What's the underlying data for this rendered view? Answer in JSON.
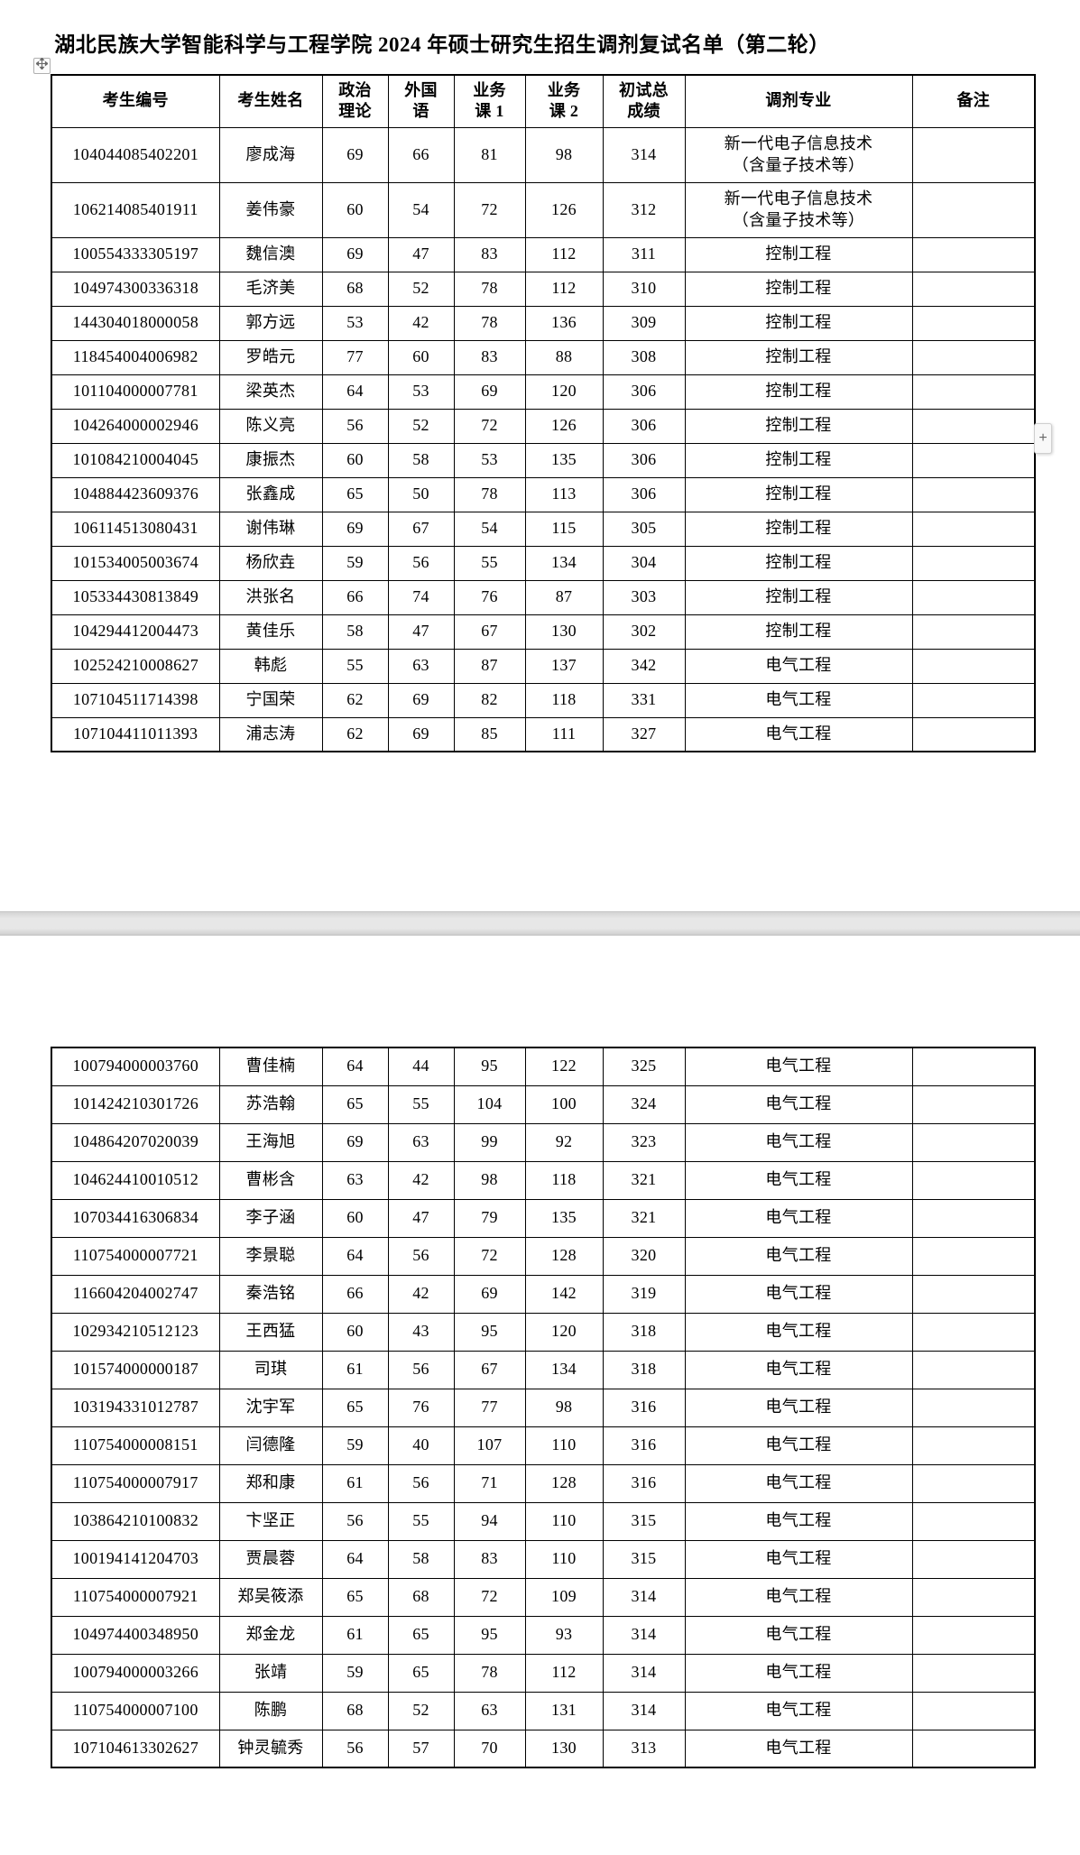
{
  "title": "湖北民族大学智能科学与工程学院 2024 年硕士研究生招生调剂复试名单（第二轮）",
  "controls": {
    "move_handle_icon": "table-move-icon",
    "plus_icon": "plus-icon",
    "plus_label": "+"
  },
  "table": {
    "headers": [
      "考生编号",
      "考生姓名",
      "政治\n理论",
      "外国\n语",
      "业务\n课 1",
      "业务\n课 2",
      "初试总\n成绩",
      "调剂专业",
      "备注"
    ],
    "rows_page1": [
      [
        "104044085402201",
        "廖成海",
        "69",
        "66",
        "81",
        "98",
        "314",
        "新一代电子信息技术\n（含量子技术等）",
        ""
      ],
      [
        "106214085401911",
        "姜伟豪",
        "60",
        "54",
        "72",
        "126",
        "312",
        "新一代电子信息技术\n（含量子技术等）",
        ""
      ],
      [
        "100554333305197",
        "魏信澳",
        "69",
        "47",
        "83",
        "112",
        "311",
        "控制工程",
        ""
      ],
      [
        "104974300336318",
        "毛济美",
        "68",
        "52",
        "78",
        "112",
        "310",
        "控制工程",
        ""
      ],
      [
        "144304018000058",
        "郭方远",
        "53",
        "42",
        "78",
        "136",
        "309",
        "控制工程",
        ""
      ],
      [
        "118454004006982",
        "罗皓元",
        "77",
        "60",
        "83",
        "88",
        "308",
        "控制工程",
        ""
      ],
      [
        "101104000007781",
        "梁英杰",
        "64",
        "53",
        "69",
        "120",
        "306",
        "控制工程",
        ""
      ],
      [
        "104264000002946",
        "陈义亮",
        "56",
        "52",
        "72",
        "126",
        "306",
        "控制工程",
        ""
      ],
      [
        "101084210004045",
        "康振杰",
        "60",
        "58",
        "53",
        "135",
        "306",
        "控制工程",
        ""
      ],
      [
        "104884423609376",
        "张鑫成",
        "65",
        "50",
        "78",
        "113",
        "306",
        "控制工程",
        ""
      ],
      [
        "106114513080431",
        "谢伟琳",
        "69",
        "67",
        "54",
        "115",
        "305",
        "控制工程",
        ""
      ],
      [
        "101534005003674",
        "杨欣垚",
        "59",
        "56",
        "55",
        "134",
        "304",
        "控制工程",
        ""
      ],
      [
        "105334430813849",
        "洪张名",
        "66",
        "74",
        "76",
        "87",
        "303",
        "控制工程",
        ""
      ],
      [
        "104294412004473",
        "黄佳乐",
        "58",
        "47",
        "67",
        "130",
        "302",
        "控制工程",
        ""
      ],
      [
        "102524210008627",
        "韩彪",
        "55",
        "63",
        "87",
        "137",
        "342",
        "电气工程",
        ""
      ],
      [
        "107104511714398",
        "宁国荣",
        "62",
        "69",
        "82",
        "118",
        "331",
        "电气工程",
        ""
      ],
      [
        "107104411011393",
        "浦志涛",
        "62",
        "69",
        "85",
        "111",
        "327",
        "电气工程",
        ""
      ]
    ],
    "rows_page2": [
      [
        "100794000003760",
        "曹佳楠",
        "64",
        "44",
        "95",
        "122",
        "325",
        "电气工程",
        ""
      ],
      [
        "101424210301726",
        "苏浩翰",
        "65",
        "55",
        "104",
        "100",
        "324",
        "电气工程",
        ""
      ],
      [
        "104864207020039",
        "王海旭",
        "69",
        "63",
        "99",
        "92",
        "323",
        "电气工程",
        ""
      ],
      [
        "104624410010512",
        "曹彬含",
        "63",
        "42",
        "98",
        "118",
        "321",
        "电气工程",
        ""
      ],
      [
        "107034416306834",
        "李子涵",
        "60",
        "47",
        "79",
        "135",
        "321",
        "电气工程",
        ""
      ],
      [
        "110754000007721",
        "李景聪",
        "64",
        "56",
        "72",
        "128",
        "320",
        "电气工程",
        ""
      ],
      [
        "116604204002747",
        "秦浩铭",
        "66",
        "42",
        "69",
        "142",
        "319",
        "电气工程",
        ""
      ],
      [
        "102934210512123",
        "王西猛",
        "60",
        "43",
        "95",
        "120",
        "318",
        "电气工程",
        ""
      ],
      [
        "101574000000187",
        "司琪",
        "61",
        "56",
        "67",
        "134",
        "318",
        "电气工程",
        ""
      ],
      [
        "103194331012787",
        "沈宇军",
        "65",
        "76",
        "77",
        "98",
        "316",
        "电气工程",
        ""
      ],
      [
        "110754000008151",
        "闫德隆",
        "59",
        "40",
        "107",
        "110",
        "316",
        "电气工程",
        ""
      ],
      [
        "110754000007917",
        "郑和康",
        "61",
        "56",
        "71",
        "128",
        "316",
        "电气工程",
        ""
      ],
      [
        "103864210100832",
        "卞坚正",
        "56",
        "55",
        "94",
        "110",
        "315",
        "电气工程",
        ""
      ],
      [
        "100194141204703",
        "贾晨蓉",
        "64",
        "58",
        "83",
        "110",
        "315",
        "电气工程",
        ""
      ],
      [
        "110754000007921",
        "郑吴筱添",
        "65",
        "68",
        "72",
        "109",
        "314",
        "电气工程",
        ""
      ],
      [
        "104974400348950",
        "郑金龙",
        "61",
        "65",
        "95",
        "93",
        "314",
        "电气工程",
        ""
      ],
      [
        "100794000003266",
        "张靖",
        "59",
        "65",
        "78",
        "112",
        "314",
        "电气工程",
        ""
      ],
      [
        "110754000007100",
        "陈鹏",
        "68",
        "52",
        "63",
        "131",
        "314",
        "电气工程",
        ""
      ],
      [
        "107104613302627",
        "钟灵毓秀",
        "56",
        "57",
        "70",
        "130",
        "313",
        "电气工程",
        ""
      ]
    ]
  }
}
